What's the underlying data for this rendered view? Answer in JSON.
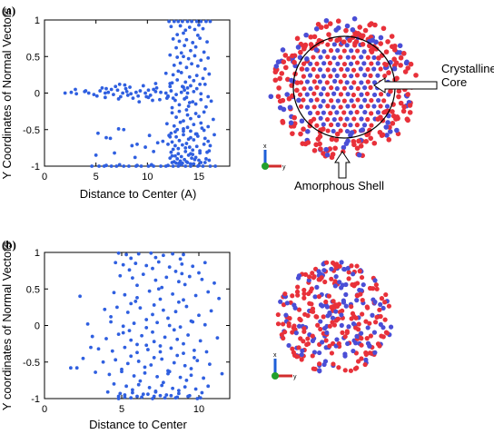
{
  "chart_data": [
    {
      "type": "scatter",
      "panel_label": "(a)",
      "title": "",
      "xlabel": "Distance to Center (A)",
      "ylabel": "Y Coordinates of Normal Vectors",
      "xlim": [
        0,
        18
      ],
      "ylim": [
        -1,
        1
      ],
      "xticks": [
        "0",
        "5",
        "10",
        "15"
      ],
      "yticks": [
        "1",
        "0.5",
        "0",
        "-0.5",
        "-1"
      ],
      "grid": false,
      "legend": "none",
      "marker_color": "#2f5fe0",
      "series": [
        {
          "x": [
            12.1,
            12.6,
            13.0,
            13.4,
            13.9,
            14.3,
            14.8,
            15.2,
            15.7,
            16.1,
            12.3,
            13.2,
            14.1,
            15.0,
            13.7,
            14.6,
            15.4,
            12.9,
            13.5,
            14.9,
            12.5,
            13.1,
            13.8,
            14.4,
            15.1,
            15.8,
            13.6,
            14.7,
            12.8,
            14.2,
            13.3,
            15.5,
            12.2,
            12.9,
            13.5,
            14.0,
            14.6,
            15.2,
            15.9,
            13.2,
            14.3,
            12.6,
            13.8,
            14.9,
            13.0,
            15.6,
            11.8,
            12.5,
            13.3,
            14.1,
            14.8,
            15.4,
            16.0,
            12.9,
            13.7,
            14.5,
            12.2,
            15.1,
            13.4,
            14.2,
            11.9,
            12.7,
            13.6,
            14.4,
            15.2,
            16.2,
            13.1,
            14.0,
            12.4,
            14.7,
            13.8,
            15.7,
            12.4,
            13.1,
            13.9,
            14.7,
            15.5,
            12.8,
            14.2,
            15.0,
            13.5,
            16.4,
            2.0,
            2.6,
            3.1,
            3.9,
            4.3,
            4.8,
            5.4,
            5.9,
            6.2,
            6.7,
            7.1,
            7.6,
            8.0,
            8.4,
            8.9,
            9.3,
            9.8,
            10.3,
            10.8,
            11.3,
            11.8,
            12.3,
            12.8,
            13.3,
            13.9,
            14.5,
            15.2,
            6.5,
            7.9,
            9.1,
            10.6,
            12.0,
            13.6,
            5.6,
            6.9,
            8.3,
            9.6,
            10.9,
            12.2,
            13.5,
            14.8,
            7.4,
            10.1,
            5.9,
            7.2,
            8.6,
            9.9,
            11.2,
            12.5,
            13.8,
            7.8,
            10.5,
            3.0,
            5.1,
            7.3,
            9.2,
            10.8,
            12.4,
            14.1,
            15.6,
            4.0,
            6.0,
            8.1,
            10.1,
            12.0,
            13.9,
            15.9,
            11.9,
            12.6,
            13.2,
            13.9,
            14.5,
            15.2,
            15.9,
            12.9,
            14.2,
            13.5,
            15.5,
            12.3,
            14.8,
            12.1,
            12.8,
            13.5,
            14.2,
            14.9,
            15.6,
            13.1,
            14.5,
            12.4,
            15.9,
            13.8,
            12.0,
            12.7,
            13.4,
            14.1,
            14.8,
            15.5,
            13.0,
            14.4,
            12.5,
            15.1,
            13.7,
            16.1,
            12.3,
            13.0,
            13.7,
            14.4,
            15.1,
            12.7,
            14.0,
            15.8,
            13.3,
            14.7,
            12.2,
            12.9,
            13.6,
            14.3,
            15.0,
            15.7,
            13.2,
            14.6,
            12.6,
            16.0,
            13.9,
            12.4,
            13.1,
            13.8,
            14.5,
            15.2,
            12.8,
            14.2,
            15.6,
            13.4,
            5.2,
            6.4,
            7.7,
            9.0,
            10.2,
            11.5,
            12.7,
            14.0,
            15.3,
            16.5,
            6.0,
            8.5,
            11.0,
            13.5,
            7.2,
            9.8,
            12.2,
            14.7,
            5.0,
            6.8,
            8.8,
            10.6,
            12.4,
            14.2,
            16.0,
            4.6,
            5.8,
            7.0,
            8.2,
            9.4,
            10.6,
            11.8,
            13.0,
            14.2,
            15.4,
            16.6,
            5.3,
            6.5,
            7.7,
            8.9,
            10.1,
            11.3,
            12.5,
            13.7,
            14.9,
            16.1,
            6.0,
            9.0,
            12.0,
            15.0,
            7.3,
            10.4,
            13.3
          ],
          "y": [
            0.98,
            0.98,
            0.98,
            0.98,
            0.98,
            0.98,
            0.98,
            0.98,
            0.98,
            0.98,
            0.91,
            0.92,
            0.9,
            0.93,
            0.86,
            0.87,
            0.88,
            0.8,
            0.82,
            0.79,
            0.74,
            0.71,
            0.73,
            0.69,
            0.75,
            0.7,
            0.65,
            0.63,
            0.62,
            0.58,
            0.55,
            0.56,
            0.52,
            0.49,
            0.5,
            0.47,
            0.51,
            0.45,
            0.48,
            0.41,
            0.4,
            0.38,
            0.35,
            0.37,
            0.3,
            0.33,
            0.27,
            0.25,
            0.28,
            0.22,
            0.24,
            0.2,
            0.26,
            0.18,
            0.15,
            0.17,
            0.13,
            0.12,
            0.09,
            0.1,
            -0.07,
            -0.1,
            -0.08,
            -0.12,
            -0.09,
            -0.11,
            -0.16,
            -0.18,
            -0.2,
            -0.15,
            -0.23,
            -0.19,
            -0.27,
            -0.25,
            -0.3,
            -0.28,
            -0.26,
            -0.33,
            -0.35,
            -0.32,
            -0.38,
            -0.36,
            0.0,
            0.01,
            -0.01,
            0.02,
            0.0,
            -0.02,
            0.03,
            0.0,
            0.01,
            -0.02,
            0.04,
            0.0,
            0.02,
            -0.01,
            0.01,
            0.03,
            0.0,
            -0.03,
            0.02,
            0.01,
            0.0,
            0.03,
            -0.02,
            0.01,
            0.0,
            0.02,
            -0.01,
            0.05,
            0.06,
            -0.04,
            0.05,
            -0.05,
            0.04,
            0.07,
            0.09,
            0.08,
            0.1,
            0.07,
            0.09,
            0.08,
            0.06,
            -0.05,
            -0.06,
            -0.06,
            -0.08,
            -0.07,
            -0.05,
            -0.09,
            -0.07,
            -0.06,
            0.11,
            -0.1,
            0.05,
            -0.04,
            0.12,
            -0.12,
            0.13,
            0.14,
            -0.13,
            0.12,
            0.03,
            0.06,
            -0.03,
            0.04,
            -0.04,
            0.07,
            -0.05,
            -0.42,
            -0.45,
            -0.4,
            -0.47,
            -0.43,
            -0.41,
            -0.46,
            -0.5,
            -0.52,
            -0.49,
            -0.51,
            -0.55,
            -0.56,
            -0.58,
            -0.6,
            -0.57,
            -0.61,
            -0.59,
            -0.62,
            -0.65,
            -0.64,
            -0.67,
            -0.66,
            -0.69,
            -0.7,
            -0.72,
            -0.71,
            -0.74,
            -0.73,
            -0.7,
            -0.76,
            -0.78,
            -0.77,
            -0.79,
            -0.75,
            -0.72,
            -0.81,
            -0.83,
            -0.8,
            -0.84,
            -0.82,
            -0.86,
            -0.85,
            -0.81,
            -0.87,
            -0.88,
            -0.89,
            -0.9,
            -0.91,
            -0.89,
            -0.92,
            -0.9,
            -0.93,
            -0.91,
            -0.94,
            -0.92,
            -0.95,
            -0.95,
            -0.96,
            -0.94,
            -0.97,
            -0.95,
            -0.96,
            -0.97,
            -0.95,
            -0.96,
            -0.55,
            -0.62,
            -0.5,
            -0.7,
            -0.58,
            -0.66,
            -0.53,
            -0.63,
            -0.48,
            -0.57,
            -0.61,
            -0.72,
            -0.68,
            -0.52,
            -0.49,
            -0.74,
            -0.6,
            -0.56,
            -0.85,
            -0.82,
            -0.88,
            -0.8,
            -0.86,
            -0.83,
            -0.79,
            -1.0,
            -1.0,
            -1.0,
            -1.0,
            -1.0,
            -1.0,
            -1.0,
            -1.0,
            -1.0,
            -1.0,
            -1.0,
            -1.0,
            -1.0,
            -1.0,
            -1.0,
            -1.0,
            -1.0,
            -1.0,
            -1.0,
            -1.0,
            -1.0,
            -0.99,
            -0.99,
            -0.99,
            -0.99,
            -0.98,
            -0.98,
            -0.98
          ]
        }
      ]
    },
    {
      "type": "scatter",
      "panel_label": "(b)",
      "title": "",
      "xlabel": "Distance to Center",
      "ylabel": "Y coordinates of Normal Vectors",
      "xlim": [
        0,
        12
      ],
      "ylim": [
        -1,
        1
      ],
      "xticks": [
        "0",
        "5",
        "10"
      ],
      "yticks": [
        "1",
        "0.5",
        "0",
        "-0.5",
        "-1"
      ],
      "grid": false,
      "legend": "none",
      "marker_color": "#2f5fe0",
      "series": [
        {
          "x": [
            4.8,
            5.3,
            6.1,
            6.9,
            7.7,
            8.3,
            9.0,
            5.6,
            7.2,
            8.8,
            4.6,
            5.1,
            5.9,
            6.6,
            7.4,
            8.1,
            8.9,
            9.6,
            10.4,
            5.5,
            7.0,
            8.5,
            10.0,
            4.9,
            5.7,
            6.4,
            7.2,
            7.9,
            8.7,
            9.4,
            10.2,
            11.0,
            6.0,
            7.6,
            9.1,
            2.3,
            4.5,
            5.2,
            6.0,
            6.8,
            7.5,
            8.3,
            9.0,
            9.8,
            10.6,
            11.3,
            5.6,
            7.1,
            8.7,
            3.9,
            4.7,
            5.4,
            6.2,
            7.0,
            7.7,
            8.5,
            9.2,
            10.0,
            10.8,
            6.6,
            8.0,
            9.5,
            2.8,
            4.3,
            5.1,
            5.8,
            6.6,
            7.3,
            8.1,
            8.8,
            9.6,
            10.4,
            5.5,
            7.0,
            8.4,
            3.1,
            4.0,
            4.8,
            5.6,
            6.3,
            7.1,
            7.8,
            8.6,
            9.3,
            10.1,
            11.2,
            6.0,
            7.5,
            9.0,
            3.5,
            4.4,
            5.2,
            6.0,
            6.7,
            7.5,
            8.2,
            9.0,
            9.7,
            10.5,
            5.6,
            7.1,
            8.6,
            2.1,
            3.8,
            4.6,
            5.4,
            6.1,
            6.9,
            7.6,
            8.4,
            9.1,
            9.9,
            10.7,
            5.0,
            6.5,
            8.0,
            9.5,
            3.3,
            4.2,
            5.0,
            5.8,
            6.5,
            7.3,
            8.0,
            8.8,
            9.5,
            10.3,
            11.5,
            6.2,
            7.7,
            9.2,
            1.7,
            4.5,
            5.3,
            6.1,
            6.8,
            7.6,
            8.3,
            9.1,
            9.8,
            10.6,
            5.7,
            7.2,
            8.7,
            2.5,
            4.1,
            4.9,
            5.7,
            6.4,
            7.2,
            7.9,
            8.7,
            9.4,
            10.2,
            6.0,
            7.5,
            3.0,
            4.8,
            5.6,
            6.3,
            7.1,
            7.8,
            8.6,
            9.3,
            10.1,
            5.2,
            6.7,
            8.2,
            4.3,
            5.1,
            5.9,
            6.6,
            7.4,
            8.1,
            8.9,
            9.7,
            4.8,
            5.2,
            7.0,
            8.5,
            9.9
          ],
          "y": [
            0.99,
            0.97,
            0.98,
            0.99,
            0.96,
            0.98,
            0.97,
            0.92,
            0.93,
            0.91,
            0.86,
            0.83,
            0.85,
            0.82,
            0.87,
            0.8,
            0.84,
            0.81,
            0.86,
            0.76,
            0.78,
            0.74,
            0.72,
            0.68,
            0.65,
            0.7,
            0.62,
            0.66,
            0.6,
            0.67,
            0.63,
            0.58,
            0.55,
            0.52,
            0.56,
            0.4,
            0.45,
            0.42,
            0.38,
            0.47,
            0.36,
            0.43,
            0.35,
            0.41,
            0.46,
            0.37,
            0.3,
            0.28,
            0.32,
            0.22,
            0.25,
            0.18,
            0.24,
            0.15,
            0.21,
            0.19,
            0.26,
            0.14,
            0.2,
            0.08,
            0.1,
            0.06,
            0.02,
            0.05,
            -0.01,
            0.03,
            -0.03,
            0.04,
            0.0,
            -0.02,
            0.05,
            0.01,
            -0.07,
            -0.09,
            -0.06,
            -0.15,
            -0.18,
            -0.12,
            -0.2,
            -0.14,
            -0.22,
            -0.16,
            -0.19,
            -0.13,
            -0.21,
            -0.17,
            -0.26,
            -0.28,
            -0.25,
            -0.32,
            -0.35,
            -0.3,
            -0.37,
            -0.33,
            -0.36,
            -0.31,
            -0.38,
            -0.34,
            -0.36,
            -0.42,
            -0.44,
            -0.41,
            -0.58,
            -0.5,
            -0.47,
            -0.52,
            -0.49,
            -0.54,
            -0.46,
            -0.51,
            -0.55,
            -0.48,
            -0.53,
            -0.6,
            -0.57,
            -0.62,
            -0.59,
            -0.64,
            -0.67,
            -0.63,
            -0.69,
            -0.65,
            -0.7,
            -0.66,
            -0.71,
            -0.68,
            -0.72,
            -0.66,
            -0.76,
            -0.78,
            -0.75,
            -0.58,
            -0.8,
            -0.83,
            -0.81,
            -0.85,
            -0.82,
            -0.86,
            -0.84,
            -0.87,
            -0.83,
            -0.88,
            -0.9,
            -0.89,
            -0.45,
            -0.91,
            -0.93,
            -0.92,
            -0.94,
            -0.91,
            -0.95,
            -0.93,
            -0.96,
            -0.92,
            -0.97,
            -0.96,
            -0.3,
            -0.97,
            -0.99,
            -0.98,
            -0.97,
            -0.99,
            -0.98,
            -0.97,
            -0.99,
            -0.95,
            -0.94,
            -0.96,
            0.12,
            -0.1,
            0.33,
            -0.27,
            0.5,
            -0.63,
            0.71,
            -0.44,
            -1.0,
            -0.98,
            -1.0,
            -0.99,
            -1.0
          ]
        }
      ]
    }
  ],
  "annotations": {
    "core_label": "Crystalline\nCore",
    "shell_label": "Amorphous Shell"
  },
  "triad": {
    "x_label": "x",
    "y_label": "y"
  },
  "colors": {
    "marker_blue": "#2f5fe0",
    "atom_red": "#e8313a",
    "atom_blue": "#4a4ed6",
    "triad_x": "#1e5fd8",
    "triad_y": "#d12c2c",
    "triad_z": "#22a02c"
  }
}
